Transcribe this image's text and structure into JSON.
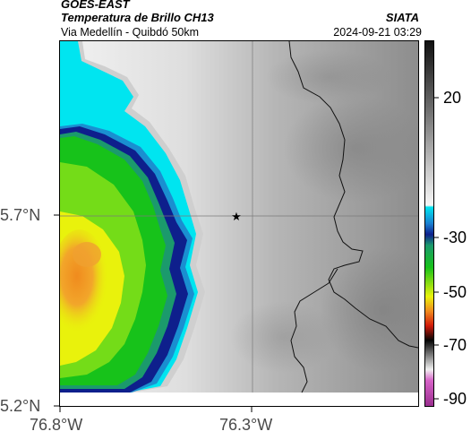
{
  "header": {
    "satellite": "GOES-EAST",
    "product": "Temperatura de Brillo CH13",
    "route": "Via Medellín - Quibdó 50km",
    "org": "SIATA",
    "datetime": "2024-09-21 03:29"
  },
  "map": {
    "lat_ticks": [
      {
        "label": "5.7°N",
        "value": 5.7
      },
      {
        "label": "5.2°N",
        "value": 5.2
      }
    ],
    "lon_ticks": [
      {
        "label": "76.8°W",
        "value": -76.8
      },
      {
        "label": "76.3°W",
        "value": -76.3
      }
    ],
    "marker": {
      "name": "star",
      "lat": 5.7,
      "lon": -76.35
    },
    "gridlines": true
  },
  "colorbar": {
    "ticks": [
      "20",
      "-30",
      "-50",
      "-70",
      "-90"
    ],
    "colors": {
      "warm_top": "#111111",
      "mid_gray": "#8a8a8a",
      "light": "#f4f4f4",
      "cyan": "#00e5f0",
      "blue": "#0e1f8c",
      "green": "#17c21a",
      "yellow": "#e9f20c",
      "orange": "#f08b1e",
      "red": "#d21a0a",
      "black": "#050505",
      "pink": "#d763c8",
      "purple": "#9b2f8f"
    }
  }
}
